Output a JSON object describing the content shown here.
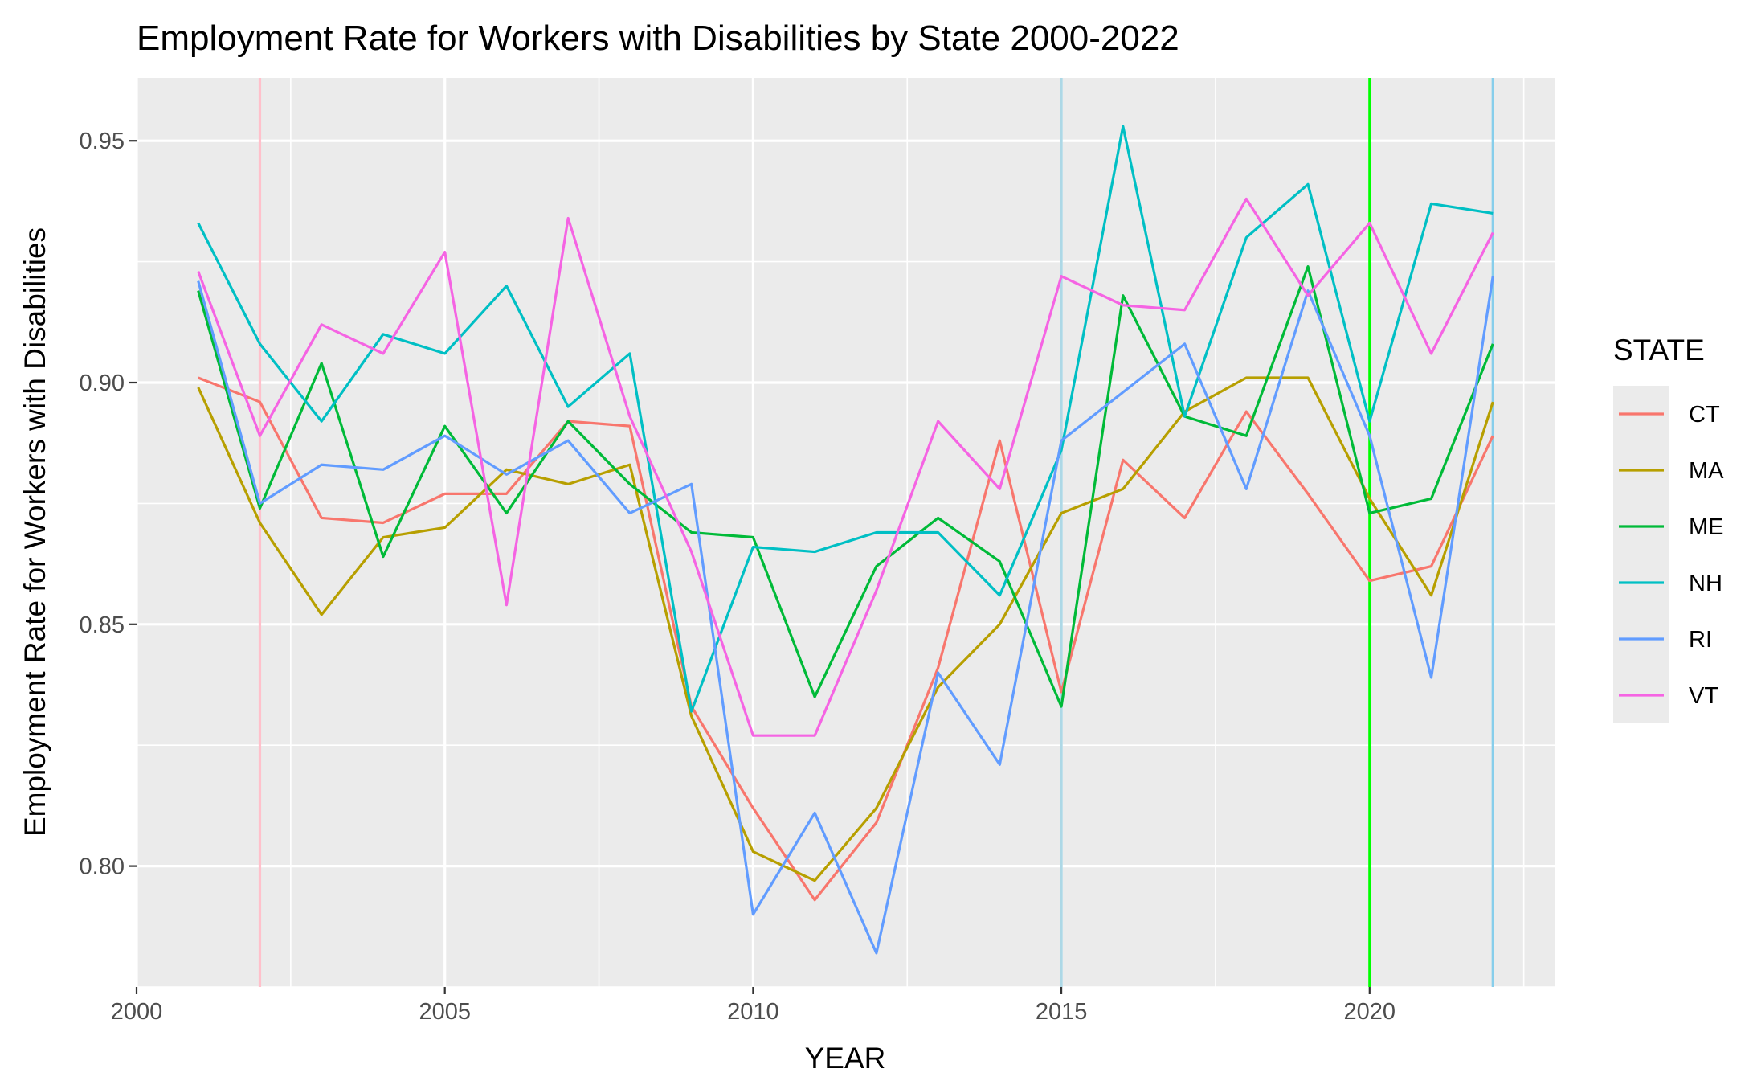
{
  "chart_data": {
    "type": "line",
    "title": "Employment Rate for Workers with Disabilities by State 2000-2022",
    "xlabel": "YEAR",
    "ylabel": "Employment Rate for Workers with Disabilities",
    "xlim": [
      2000,
      2023
    ],
    "ylim": [
      0.775,
      0.963
    ],
    "x_ticks": [
      2000,
      2005,
      2010,
      2015,
      2020
    ],
    "y_ticks": [
      0.8,
      0.85,
      0.9,
      0.95
    ],
    "y_tick_labels": [
      "0.80",
      "0.85",
      "0.90",
      "0.95"
    ],
    "grid": true,
    "legend": {
      "title": "STATE",
      "position": "right"
    },
    "x": [
      2001,
      2002,
      2003,
      2004,
      2005,
      2006,
      2007,
      2008,
      2009,
      2010,
      2011,
      2012,
      2013,
      2014,
      2015,
      2016,
      2017,
      2018,
      2019,
      2020,
      2021,
      2022
    ],
    "series": [
      {
        "name": "CT",
        "color": "#F8766D",
        "values": [
          0.901,
          0.896,
          0.872,
          0.871,
          0.877,
          0.877,
          0.892,
          0.891,
          0.833,
          0.812,
          0.793,
          0.809,
          0.841,
          0.888,
          0.836,
          0.884,
          0.872,
          0.894,
          0.877,
          0.859,
          0.862,
          0.889
        ]
      },
      {
        "name": "MA",
        "color": "#B79F00",
        "values": [
          0.899,
          0.871,
          0.852,
          0.868,
          0.87,
          0.882,
          0.879,
          0.883,
          0.831,
          0.803,
          0.797,
          0.812,
          0.837,
          0.85,
          0.873,
          0.878,
          0.894,
          0.901,
          0.901,
          0.876,
          0.856,
          0.896
        ]
      },
      {
        "name": "ME",
        "color": "#00BA38",
        "values": [
          0.919,
          0.874,
          0.904,
          0.864,
          0.891,
          0.873,
          0.892,
          0.879,
          0.869,
          0.868,
          0.835,
          0.862,
          0.872,
          0.863,
          0.833,
          0.918,
          0.893,
          0.889,
          0.924,
          0.873,
          0.876,
          0.908
        ]
      },
      {
        "name": "NH",
        "color": "#00BFC4",
        "values": [
          0.933,
          0.908,
          0.892,
          0.91,
          0.906,
          0.92,
          0.895,
          0.906,
          0.832,
          0.866,
          0.865,
          0.869,
          0.869,
          0.856,
          0.886,
          0.953,
          0.893,
          0.93,
          0.941,
          0.892,
          0.937,
          0.935
        ]
      },
      {
        "name": "RI",
        "color": "#619CFF",
        "values": [
          0.921,
          0.875,
          0.883,
          0.882,
          0.889,
          0.881,
          0.888,
          0.873,
          0.879,
          0.79,
          0.811,
          0.782,
          0.84,
          0.821,
          0.888,
          0.898,
          0.908,
          0.878,
          0.919,
          0.889,
          0.839,
          0.922
        ]
      },
      {
        "name": "VT",
        "color": "#F564E3",
        "values": [
          0.923,
          0.889,
          0.912,
          0.906,
          0.927,
          0.854,
          0.934,
          0.893,
          0.865,
          0.827,
          0.827,
          0.857,
          0.892,
          0.878,
          0.922,
          0.916,
          0.915,
          0.938,
          0.918,
          0.933,
          0.906,
          0.931
        ]
      }
    ],
    "vertical_reference_lines": [
      {
        "x": 2002,
        "color": "#FFC0CB"
      },
      {
        "x": 2015,
        "color": "#ADD8E6"
      },
      {
        "x": 2020,
        "color": "#00FF00"
      },
      {
        "x": 2022,
        "color": "#87CEEB"
      }
    ],
    "colors": {
      "panel_background": "#EBEBEB",
      "grid": "#FFFFFF",
      "tick_text": "#4D4D4D",
      "tick_mark": "#333333"
    }
  }
}
